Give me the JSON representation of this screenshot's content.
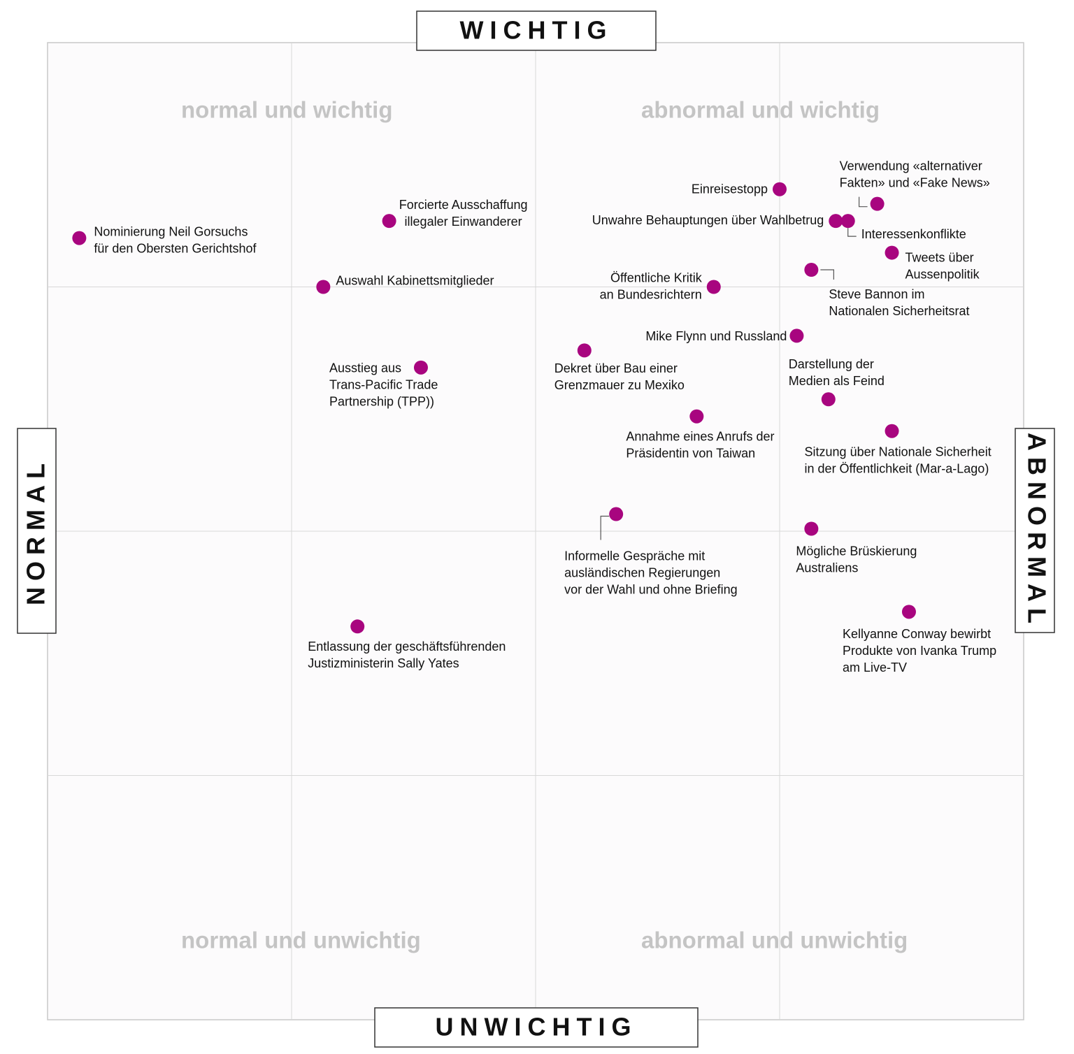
{
  "chart_data": {
    "type": "scatter",
    "axis_labels": {
      "top": "WICHTIG",
      "bottom": "UNWICHTIG",
      "left": "NORMAL",
      "right": "ABNORMAL"
    },
    "annotations": [
      "normal und wichtig",
      "abnormal und wichtig",
      "normal und unwichtig",
      "abnormal und unwichtig"
    ],
    "color": "#a8057f",
    "xlim": [
      0,
      4
    ],
    "ylim": [
      0,
      4
    ],
    "xticks": [
      1,
      2,
      3
    ],
    "yticks": [
      1,
      2,
      3
    ],
    "grid": true,
    "x": [
      0.13,
      1.4,
      1.13,
      1.53,
      1.27,
      3.0,
      3.4,
      3.23,
      3.28,
      3.46,
      3.13,
      2.73,
      3.07,
      2.2,
      3.2,
      2.66,
      3.46,
      2.33,
      3.13,
      3.53
    ],
    "values": [
      3.2,
      3.27,
      3.0,
      2.67,
      1.61,
      3.4,
      3.34,
      3.27,
      3.27,
      3.14,
      3.07,
      3.0,
      2.8,
      2.74,
      2.54,
      2.47,
      2.41,
      2.07,
      2.01,
      1.67
    ],
    "labels": [
      [
        "Nominierung Neil Gorsuchs",
        "für den Obersten Gerichtshof"
      ],
      [
        "Forcierte Ausschaffung",
        "illegaler Einwanderer"
      ],
      [
        "Auswahl Kabinettsmitglieder"
      ],
      [
        "Ausstieg aus",
        "Trans-Pacific Trade",
        "Partnership (TPP))"
      ],
      [
        "Entlassung der geschäftsführenden",
        "Justizministerin Sally Yates"
      ],
      [
        "Einreisestopp"
      ],
      [
        "Verwendung «alternativer",
        "Fakten» und «Fake News»"
      ],
      [
        "Unwahre Behauptungen über Wahlbetrug"
      ],
      [
        "Interessenkonflikte"
      ],
      [
        "Tweets über",
        "Aussenpolitik"
      ],
      [
        "Steve Bannon im",
        "Nationalen Sicherheitsrat"
      ],
      [
        "Öffentliche Kritik",
        "an Bundesrichtern"
      ],
      [
        "Mike Flynn und Russland"
      ],
      [
        "Dekret über Bau einer",
        "Grenzmauer zu Mexiko"
      ],
      [
        "Darstellung der",
        "Medien als Feind"
      ],
      [
        "Annahme eines Anrufs der",
        "Präsidentin von Taiwan"
      ],
      [
        "Sitzung über Nationale Sicherheit",
        "in der Öffentlichkeit (Mar-a-Lago)"
      ],
      [
        "Informelle Gespräche mit",
        "ausländischen Regierungen",
        "vor der Wahl und ohne Briefing"
      ],
      [
        "Mögliche Brüskierung",
        "Australiens"
      ],
      [
        "Kellyanne Conway bewirbt",
        "Produkte von Ivanka Trump",
        "am Live-TV"
      ]
    ]
  }
}
